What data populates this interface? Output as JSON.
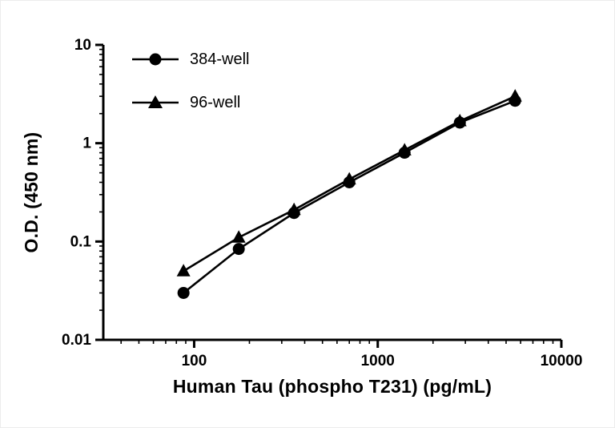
{
  "chart_data": {
    "type": "line",
    "title": "",
    "xlabel": "Human Tau (phospho T231) (pg/mL)",
    "ylabel": "O.D. (450 nm)",
    "x_scale": "log",
    "y_scale": "log",
    "xlim": [
      32,
      10000
    ],
    "ylim": [
      0.01,
      10
    ],
    "x_ticks": [
      100,
      1000,
      10000
    ],
    "x_tick_labels": [
      "100",
      "1000",
      "10000"
    ],
    "y_ticks": [
      0.01,
      0.1,
      1,
      10
    ],
    "y_tick_labels": [
      "0.01",
      "0.1",
      "1",
      "10"
    ],
    "grid": false,
    "legend_position": "top-left",
    "line_color": "#000000",
    "background_color": "#ffffff",
    "series": [
      {
        "name": "384-well",
        "marker": "circle",
        "x": [
          87.5,
          175,
          350,
          700,
          1400,
          2800,
          5600
        ],
        "y": [
          0.03,
          0.084,
          0.195,
          0.4,
          0.8,
          1.62,
          2.7
        ]
      },
      {
        "name": "96-well",
        "marker": "triangle",
        "x": [
          87.5,
          175,
          350,
          700,
          1400,
          2800,
          5600
        ],
        "y": [
          0.05,
          0.11,
          0.21,
          0.43,
          0.85,
          1.68,
          3.0
        ]
      }
    ]
  }
}
